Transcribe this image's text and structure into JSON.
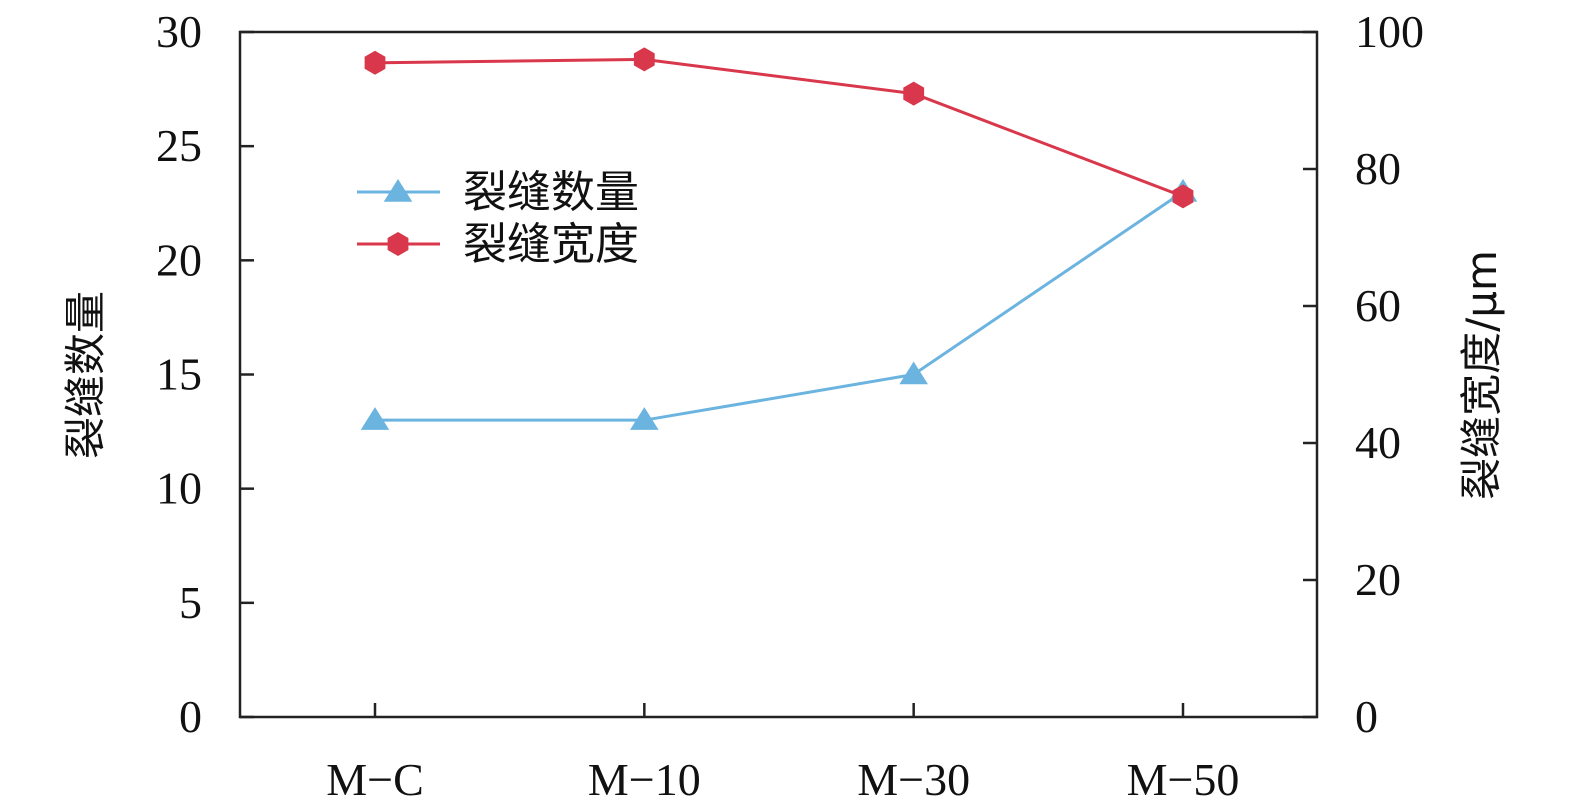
{
  "chart_data": {
    "type": "line",
    "categories": [
      "M−C",
      "M−10",
      "M−30",
      "M−50"
    ],
    "series": [
      {
        "name": "裂缝数量",
        "axis": "left",
        "color": "#6cb4e0",
        "marker": "triangle",
        "values": [
          13,
          13,
          15,
          23
        ]
      },
      {
        "name": "裂缝宽度",
        "axis": "right",
        "color": "#d9374b",
        "marker": "hexagon",
        "values": [
          95.5,
          96.0,
          91.0,
          76.0
        ]
      }
    ],
    "ylabel": "裂缝数量",
    "ylabel_right": "裂缝宽度/μm",
    "ylim": [
      0,
      30
    ],
    "ylim_right": [
      0,
      100
    ],
    "yticks": [
      0,
      5,
      10,
      15,
      20,
      25,
      30
    ],
    "yticks_right": [
      0,
      20,
      40,
      60,
      80,
      100
    ],
    "grid": false,
    "legend_position": "upper-left"
  }
}
